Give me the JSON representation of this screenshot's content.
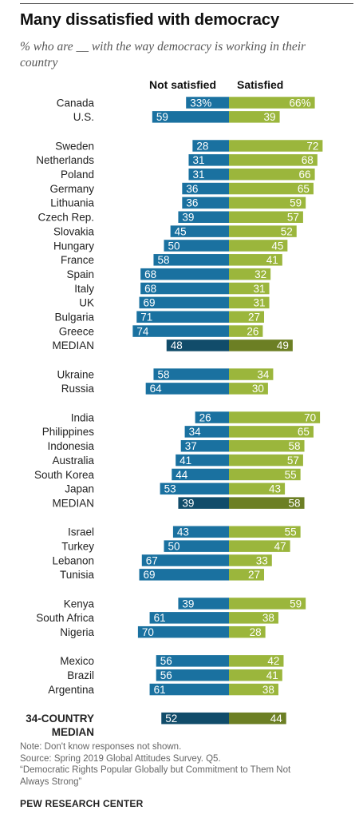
{
  "title": "Many dissatisfied with democracy",
  "subtitle": "% who are __ with the way democracy is working in their country",
  "column_headers": {
    "left": "Not satisfied",
    "right": "Satisfied"
  },
  "colors": {
    "not_satisfied": "#1a71a0",
    "satisfied": "#9bb63c",
    "median_not_satisfied": "#114c6a",
    "median_satisfied": "#6c7f24"
  },
  "chart_data": {
    "type": "bar",
    "orientation": "diverging-horizontal",
    "series": [
      {
        "name": "Not satisfied",
        "key": "not_satisfied"
      },
      {
        "name": "Satisfied",
        "key": "satisfied"
      }
    ],
    "groups": [
      {
        "rows": [
          {
            "label": "Canada",
            "not_satisfied": 33,
            "satisfied": 66,
            "not_satisfied_text": "33%",
            "satisfied_text": "66%"
          },
          {
            "label": "U.S.",
            "not_satisfied": 59,
            "satisfied": 39
          }
        ]
      },
      {
        "rows": [
          {
            "label": "Sweden",
            "not_satisfied": 28,
            "satisfied": 72
          },
          {
            "label": "Netherlands",
            "not_satisfied": 31,
            "satisfied": 68
          },
          {
            "label": "Poland",
            "not_satisfied": 31,
            "satisfied": 66
          },
          {
            "label": "Germany",
            "not_satisfied": 36,
            "satisfied": 65
          },
          {
            "label": "Lithuania",
            "not_satisfied": 36,
            "satisfied": 59
          },
          {
            "label": "Czech Rep.",
            "not_satisfied": 39,
            "satisfied": 57
          },
          {
            "label": "Slovakia",
            "not_satisfied": 45,
            "satisfied": 52
          },
          {
            "label": "Hungary",
            "not_satisfied": 50,
            "satisfied": 45
          },
          {
            "label": "France",
            "not_satisfied": 58,
            "satisfied": 41
          },
          {
            "label": "Spain",
            "not_satisfied": 68,
            "satisfied": 32
          },
          {
            "label": "Italy",
            "not_satisfied": 68,
            "satisfied": 31
          },
          {
            "label": "UK",
            "not_satisfied": 69,
            "satisfied": 31
          },
          {
            "label": "Bulgaria",
            "not_satisfied": 71,
            "satisfied": 27
          },
          {
            "label": "Greece",
            "not_satisfied": 74,
            "satisfied": 26
          },
          {
            "label": "MEDIAN",
            "not_satisfied": 48,
            "satisfied": 49,
            "median": true
          }
        ]
      },
      {
        "rows": [
          {
            "label": "Ukraine",
            "not_satisfied": 58,
            "satisfied": 34
          },
          {
            "label": "Russia",
            "not_satisfied": 64,
            "satisfied": 30
          }
        ]
      },
      {
        "rows": [
          {
            "label": "India",
            "not_satisfied": 26,
            "satisfied": 70
          },
          {
            "label": "Philippines",
            "not_satisfied": 34,
            "satisfied": 65
          },
          {
            "label": "Indonesia",
            "not_satisfied": 37,
            "satisfied": 58
          },
          {
            "label": "Australia",
            "not_satisfied": 41,
            "satisfied": 57
          },
          {
            "label": "South Korea",
            "not_satisfied": 44,
            "satisfied": 55
          },
          {
            "label": "Japan",
            "not_satisfied": 53,
            "satisfied": 43
          },
          {
            "label": "MEDIAN",
            "not_satisfied": 39,
            "satisfied": 58,
            "median": true
          }
        ]
      },
      {
        "rows": [
          {
            "label": "Israel",
            "not_satisfied": 43,
            "satisfied": 55
          },
          {
            "label": "Turkey",
            "not_satisfied": 50,
            "satisfied": 47
          },
          {
            "label": "Lebanon",
            "not_satisfied": 67,
            "satisfied": 33
          },
          {
            "label": "Tunisia",
            "not_satisfied": 69,
            "satisfied": 27
          }
        ]
      },
      {
        "rows": [
          {
            "label": "Kenya",
            "not_satisfied": 39,
            "satisfied": 59
          },
          {
            "label": "South Africa",
            "not_satisfied": 61,
            "satisfied": 38
          },
          {
            "label": "Nigeria",
            "not_satisfied": 70,
            "satisfied": 28
          }
        ]
      },
      {
        "rows": [
          {
            "label": "Mexico",
            "not_satisfied": 56,
            "satisfied": 42
          },
          {
            "label": "Brazil",
            "not_satisfied": 56,
            "satisfied": 41
          },
          {
            "label": "Argentina",
            "not_satisfied": 61,
            "satisfied": 38
          }
        ]
      },
      {
        "rows": [
          {
            "label_lines": [
              "34-COUNTRY",
              "MEDIAN"
            ],
            "not_satisfied": 52,
            "satisfied": 44,
            "median": true,
            "bold": true
          }
        ]
      }
    ]
  },
  "notes": [
    "Note: Don't know responses not shown.",
    "Source: Spring 2019 Global Attitudes Survey. Q5.",
    "“Democratic Rights Popular Globally but Commitment to Them Not",
    "Always Strong”"
  ],
  "footer": "PEW RESEARCH CENTER"
}
